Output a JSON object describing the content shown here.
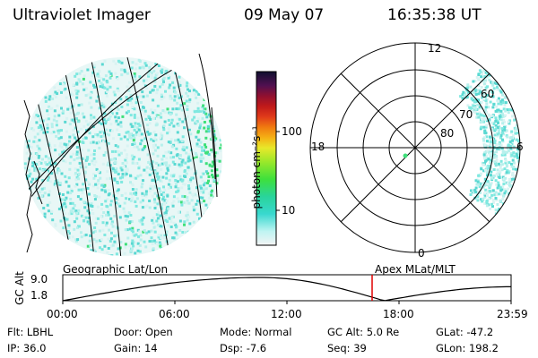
{
  "header": {
    "instrument": "Ultraviolet Imager",
    "date": "09 May 07",
    "time": "16:35:38 UT"
  },
  "colorbar": {
    "unit_label": "photon cm⁻²s⁻¹",
    "ticks": [
      "100",
      "10"
    ]
  },
  "polar_plot": {
    "mlt_labels": {
      "top": "12",
      "left": "18",
      "right": "6",
      "bottom": "0"
    },
    "lat_labels": [
      "60",
      "70",
      "80"
    ]
  },
  "timeline": {
    "left_label": "Geographic Lat/Lon",
    "right_label": "Apex MLat/MLT",
    "y_axis_label": "GC Alt",
    "y_ticks": [
      "9.0",
      "1.8"
    ],
    "x_ticks": [
      "00:00",
      "06:00",
      "12:00",
      "18:00",
      "23:59"
    ],
    "current_time_fraction": 0.69,
    "orbit_altitude_re": {
      "start_hour": 0.0,
      "apogee_hour": 10.6,
      "perigee_hour": 17.2
    }
  },
  "footer": {
    "row1": [
      {
        "label": "Flt:",
        "value": "LBHL"
      },
      {
        "label": "Door:",
        "value": "Open"
      },
      {
        "label": "Mode:",
        "value": "Normal"
      },
      {
        "label": "GC Alt:",
        "value": "5.0 Re"
      },
      {
        "label": "GLat:",
        "value": "-47.2"
      }
    ],
    "row2": [
      {
        "label": "IP:",
        "value": "36.0"
      },
      {
        "label": "Gain:",
        "value": "14"
      },
      {
        "label": "Dsp:",
        "value": "-7.6"
      },
      {
        "label": "Seq:",
        "value": "39"
      },
      {
        "label": "GLon:",
        "value": "198.2"
      }
    ]
  },
  "colors": {
    "aurora_cyan": "#7fe8e0",
    "aurora_green": "#3ee07a",
    "time_marker": "#e00000"
  }
}
